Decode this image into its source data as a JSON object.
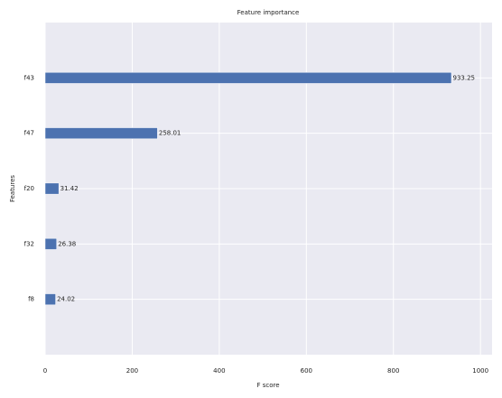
{
  "chart_data": {
    "type": "barh",
    "title": "Feature importance",
    "xlabel": "F score",
    "ylabel": "Features",
    "categories": [
      "f8",
      "f32",
      "f20",
      "f47",
      "f43"
    ],
    "values": [
      24.02,
      26.38,
      31.42,
      258.01,
      933.25
    ],
    "color": "#4c72b0",
    "xlim": [
      0,
      1026.6
    ],
    "xticks": [
      0,
      200,
      400,
      600,
      800,
      1000
    ],
    "grid": true
  }
}
